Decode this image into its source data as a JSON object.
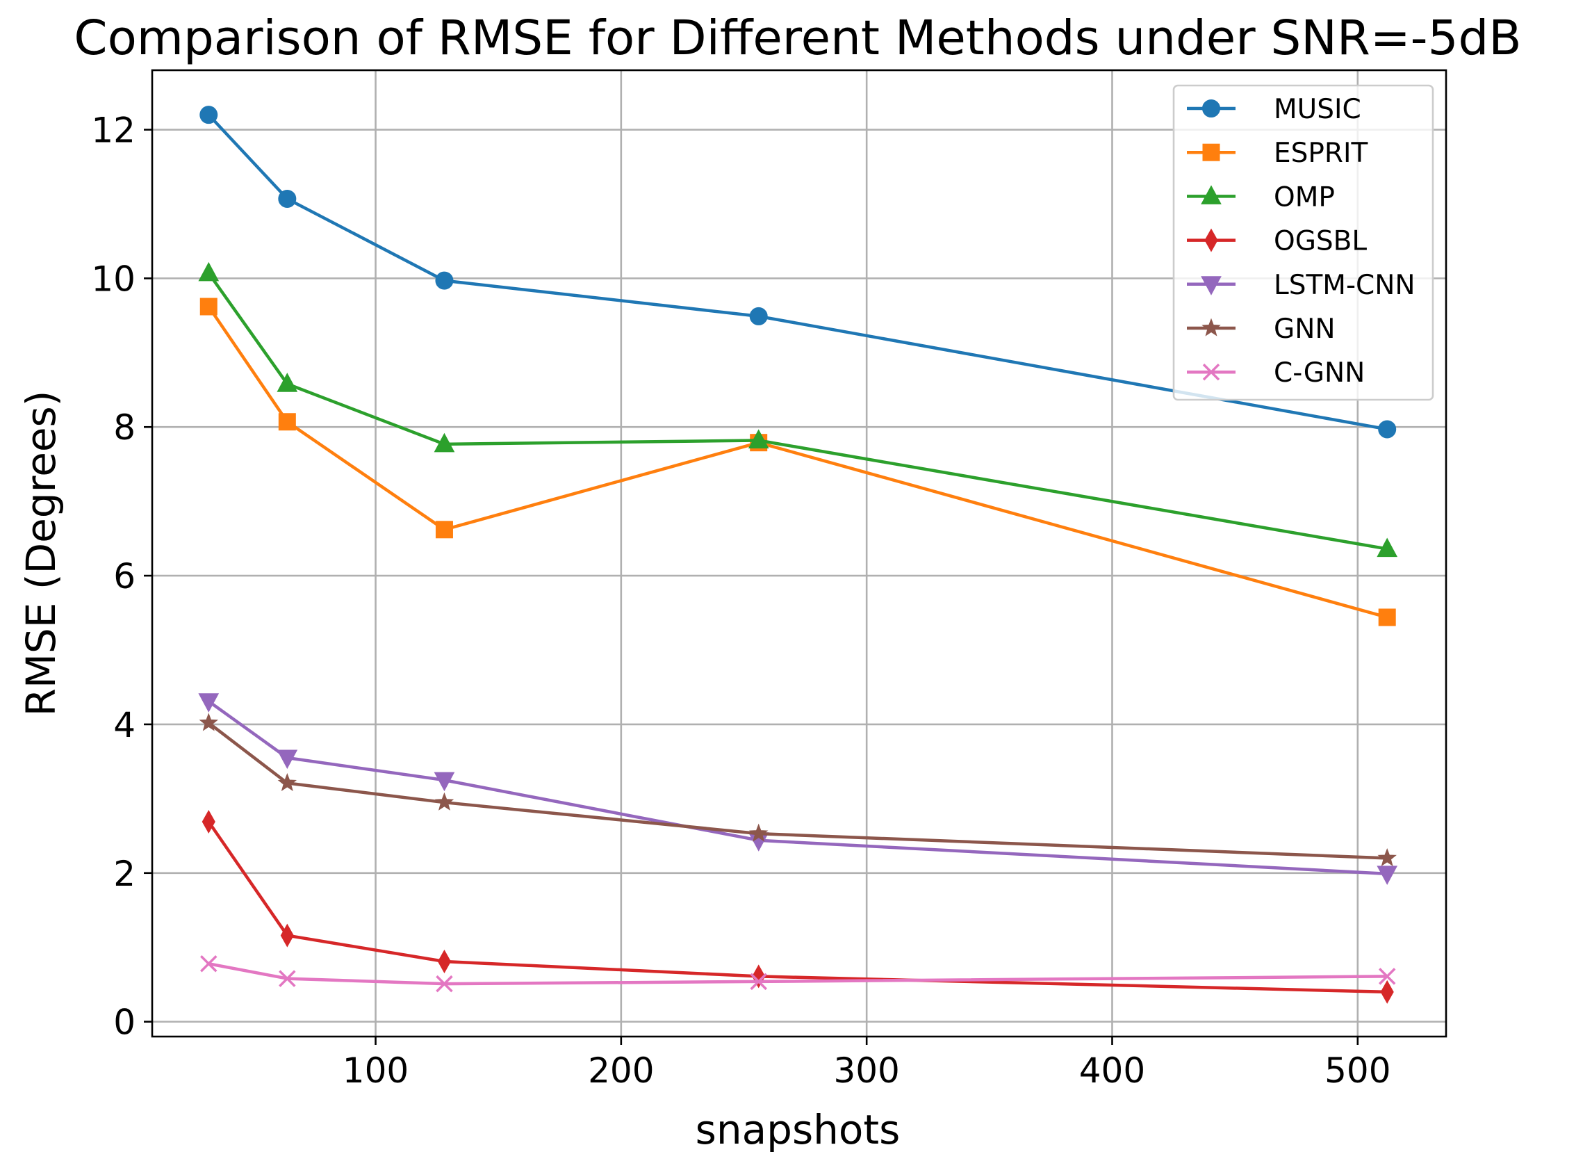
{
  "chart_data": {
    "type": "line",
    "title": "Comparison of RMSE for Different Methods under SNR=-5dB",
    "xlabel": "snapshots",
    "ylabel": "RMSE (Degrees)",
    "x": [
      32,
      64,
      128,
      256,
      512
    ],
    "xlim": [
      9,
      536
    ],
    "ylim": [
      -0.2,
      12.8
    ],
    "xticks": [
      100,
      200,
      300,
      400,
      500
    ],
    "yticks": [
      0,
      2,
      4,
      6,
      8,
      10,
      12
    ],
    "grid": true,
    "legend": "top-right",
    "series": [
      {
        "name": "MUSIC",
        "color": "#1f77b4",
        "marker": "circle",
        "values": [
          12.2,
          11.07,
          9.97,
          9.49,
          7.97
        ]
      },
      {
        "name": "ESPRIT",
        "color": "#ff7f0e",
        "marker": "square",
        "values": [
          9.62,
          8.07,
          6.62,
          7.79,
          5.44
        ]
      },
      {
        "name": "OMP",
        "color": "#2ca02c",
        "marker": "triangle-up",
        "values": [
          10.07,
          8.58,
          7.77,
          7.82,
          6.36
        ]
      },
      {
        "name": "OGSBL",
        "color": "#d62728",
        "marker": "diamond",
        "values": [
          2.69,
          1.16,
          0.81,
          0.61,
          0.4
        ]
      },
      {
        "name": "LSTM-CNN",
        "color": "#9467bd",
        "marker": "triangle-down",
        "values": [
          4.31,
          3.55,
          3.25,
          2.44,
          1.99
        ]
      },
      {
        "name": "GNN",
        "color": "#8c564b",
        "marker": "star",
        "values": [
          4.02,
          3.21,
          2.95,
          2.53,
          2.2
        ]
      },
      {
        "name": "C-GNN",
        "color": "#e377c2",
        "marker": "x",
        "values": [
          0.78,
          0.58,
          0.51,
          0.54,
          0.61
        ]
      }
    ]
  }
}
